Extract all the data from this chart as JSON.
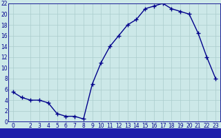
{
  "hours": [
    0,
    1,
    2,
    3,
    4,
    5,
    6,
    7,
    8,
    9,
    10,
    11,
    12,
    13,
    14,
    15,
    16,
    17,
    18,
    19,
    20,
    21,
    22,
    23
  ],
  "temperatures": [
    5.5,
    4.5,
    4.0,
    4.0,
    3.5,
    1.5,
    1.0,
    1.0,
    0.5,
    7.0,
    11.0,
    14.0,
    16.0,
    18.0,
    19.0,
    21.0,
    21.5,
    22.0,
    21.0,
    20.5,
    20.0,
    16.5,
    12.0,
    8.0
  ],
  "xlim": [
    -0.5,
    23.5
  ],
  "ylim": [
    0,
    22
  ],
  "yticks": [
    0,
    2,
    4,
    6,
    8,
    10,
    12,
    14,
    16,
    18,
    20,
    22
  ],
  "xticks": [
    0,
    2,
    3,
    4,
    5,
    6,
    7,
    8,
    9,
    10,
    11,
    12,
    13,
    14,
    15,
    16,
    17,
    18,
    19,
    20,
    21,
    22,
    23
  ],
  "line_color": "#00008b",
  "marker": "+",
  "marker_size": 4,
  "bg_color": "#cce8e8",
  "grid_color": "#aacccc",
  "xlabel_bg": "#2020aa",
  "xlabel_text_color": "#ffffff",
  "line_width": 1.0,
  "tick_fontsize": 5.5,
  "xlabel_fontsize": 7.0
}
